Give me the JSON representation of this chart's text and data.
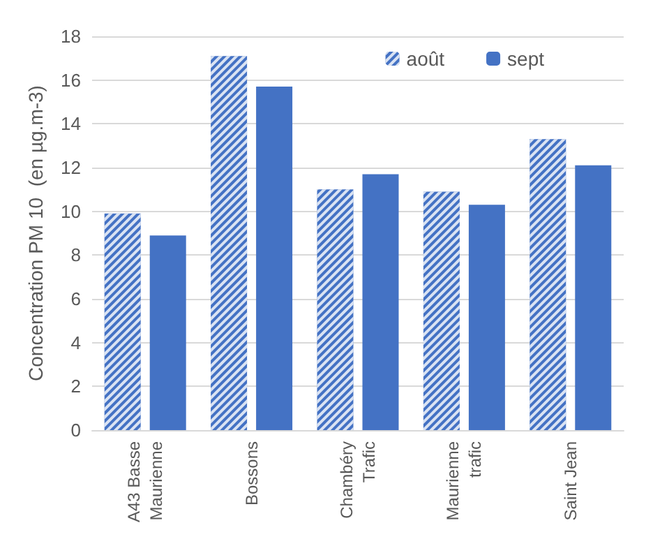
{
  "chart_data": {
    "type": "bar",
    "ylabel": "Concentration PM 10  (en µg.m-3)",
    "categories": [
      "A43 Basse\nMaurienne",
      "Bossons",
      "Chambéry\nTrafic",
      "Maurienne\ntrafic",
      "Saint Jean"
    ],
    "series": [
      {
        "name": "août",
        "color": "#4472c4",
        "values": [
          9.9,
          17.1,
          11.0,
          10.9,
          13.3
        ]
      },
      {
        "name": "sept",
        "color": "#4472c4",
        "values": [
          8.9,
          15.7,
          11.7,
          10.3,
          12.1
        ]
      }
    ],
    "ylim": [
      0,
      18
    ],
    "yticks": [
      0,
      2,
      4,
      6,
      8,
      10,
      12,
      14,
      16,
      18
    ],
    "grid": "y",
    "legend": "top right"
  }
}
